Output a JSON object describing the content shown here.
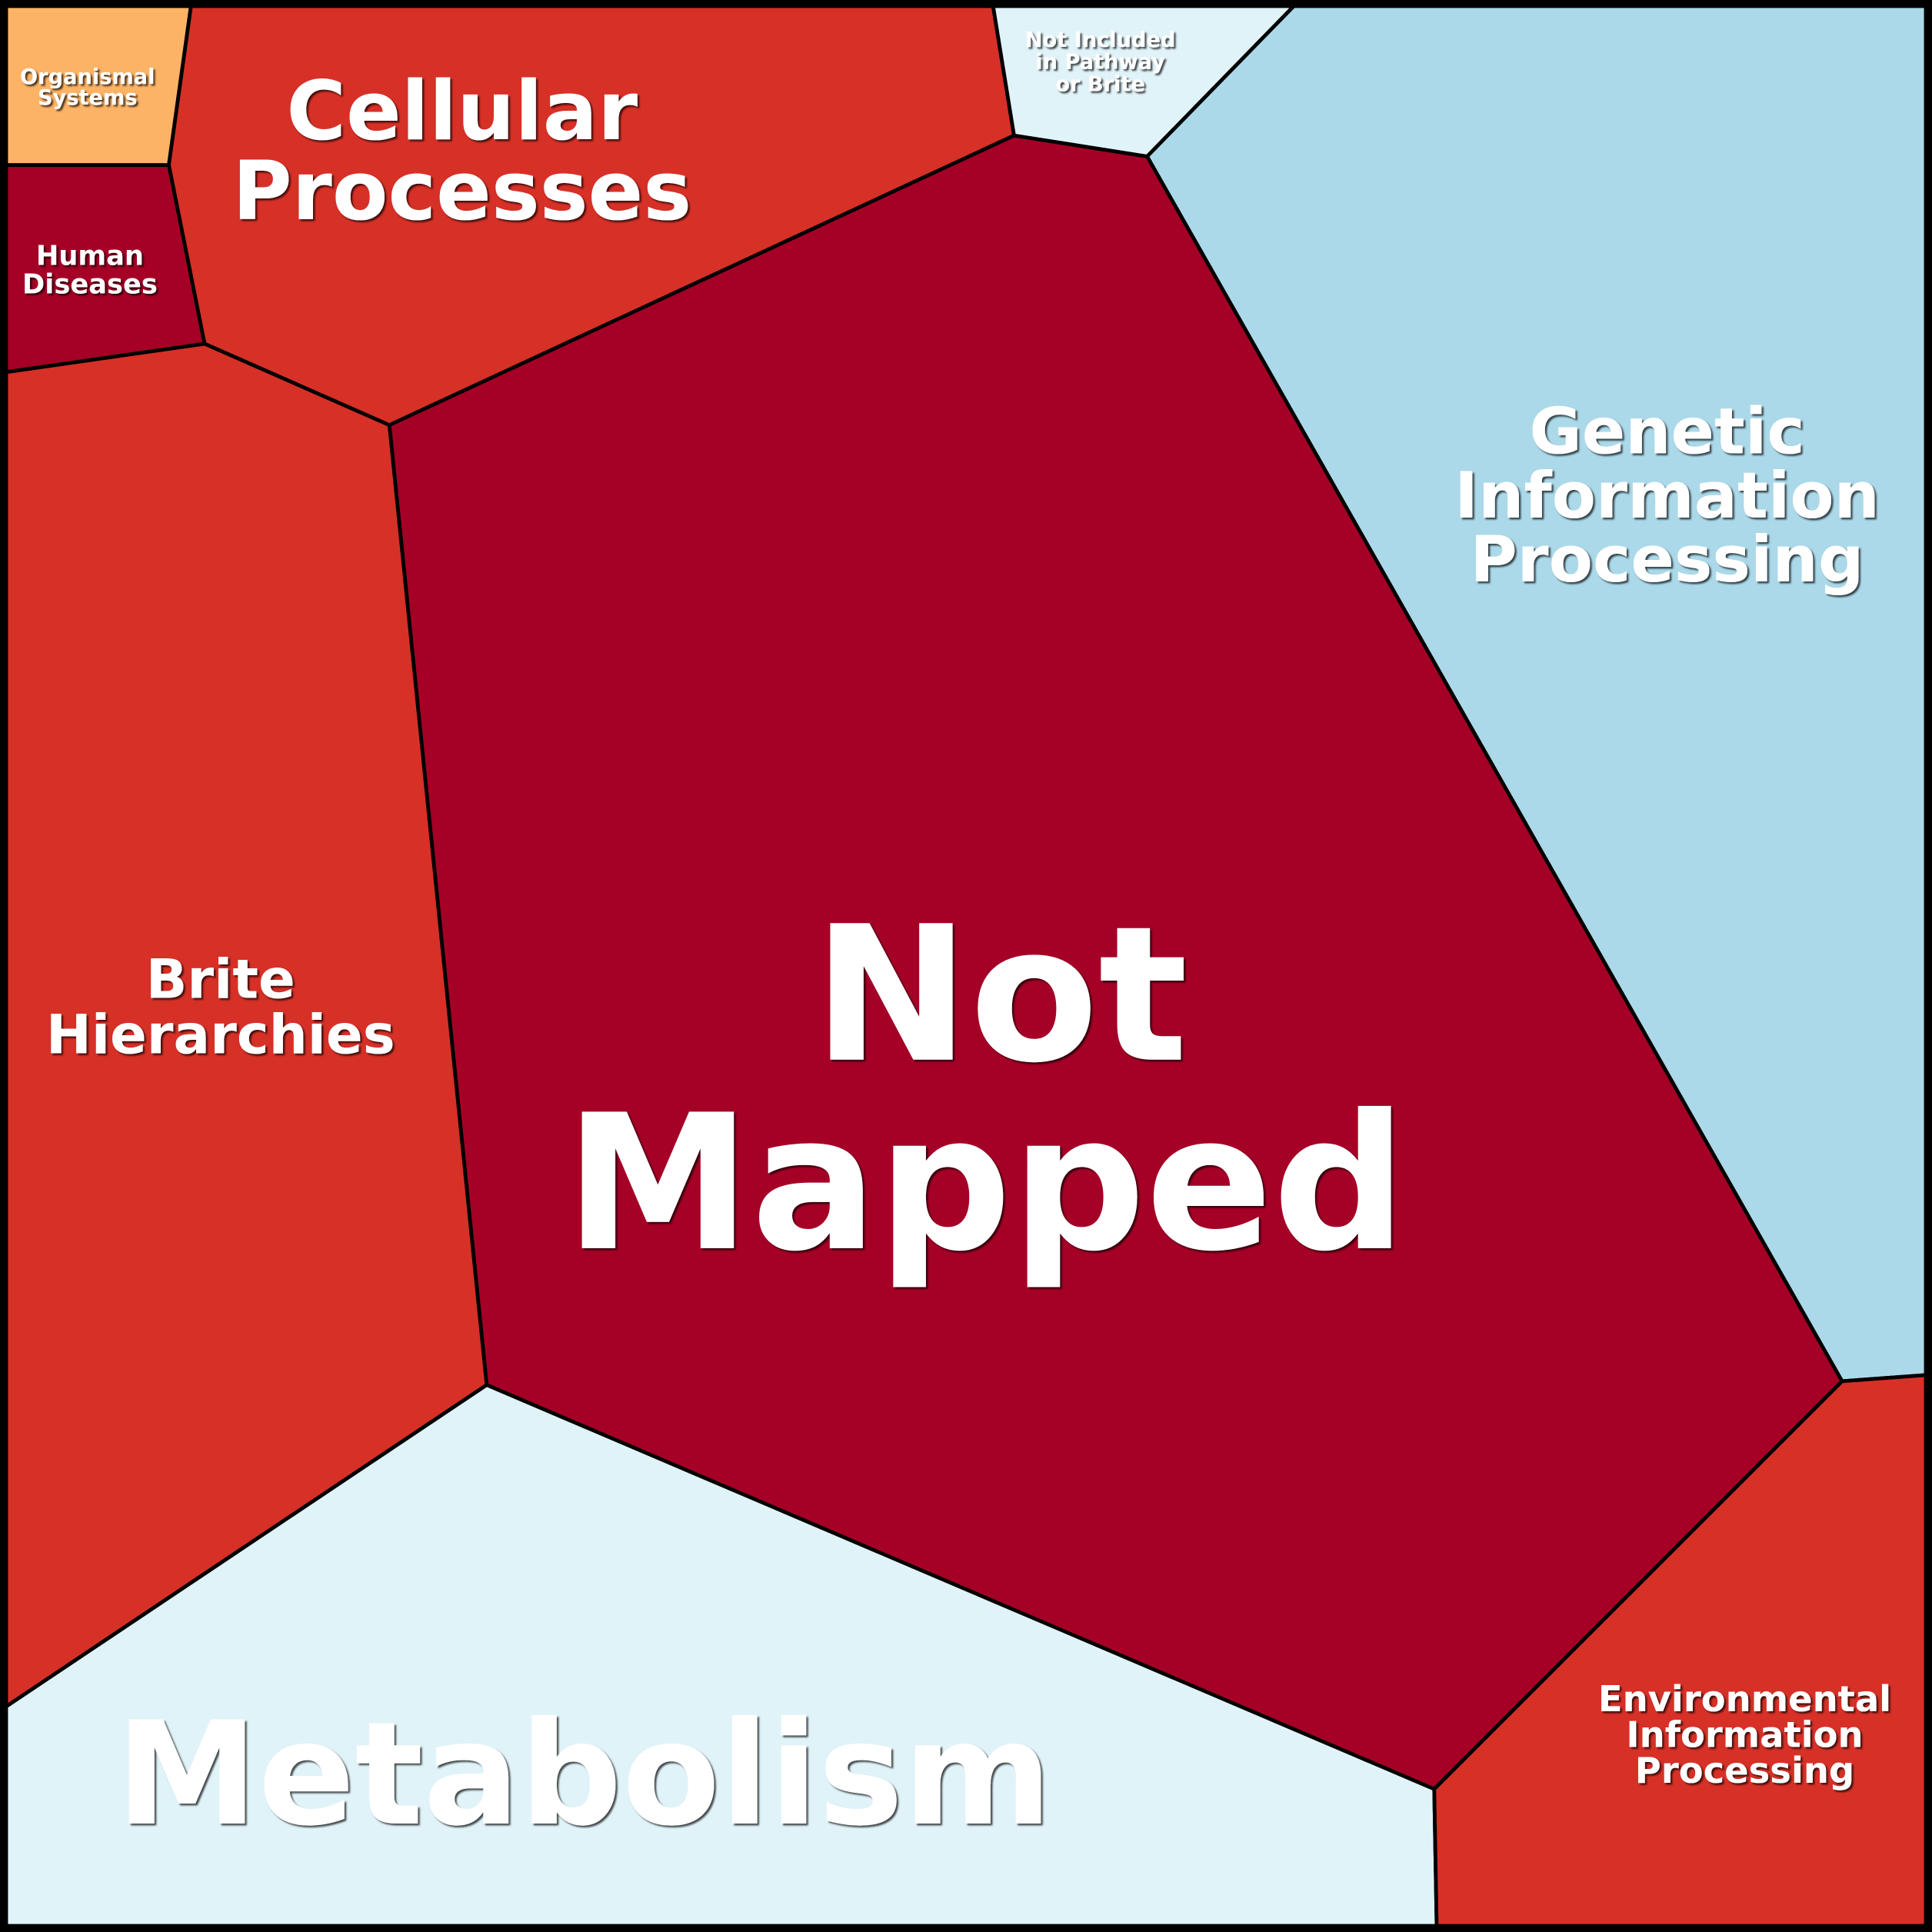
{
  "regions": [
    {
      "label": [
        "Organismal",
        "Systems"
      ]
    },
    {
      "label": [
        "Cellular",
        "Processes"
      ]
    },
    {
      "label": [
        "Not Included",
        "in Pathway",
        "or Brite"
      ]
    },
    {
      "label": [
        "Genetic",
        "Information",
        "Processing"
      ]
    },
    {
      "label": [
        "Human",
        "Diseases"
      ]
    },
    {
      "label": [
        "Not",
        "Mapped"
      ]
    },
    {
      "label": [
        "Brite",
        "Hierarchies"
      ]
    },
    {
      "label": [
        "Metabolism"
      ]
    },
    {
      "label": [
        "Environmental",
        "Information",
        "Processing"
      ]
    }
  ]
}
